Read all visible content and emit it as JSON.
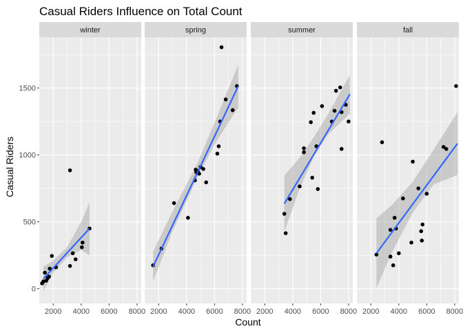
{
  "chart_data": {
    "type": "scatter",
    "title": "Casual Riders Influence on Total Count",
    "xlabel": "Count",
    "ylabel": "Casual Riders",
    "xlim": [
      1000,
      8300
    ],
    "ylim": [
      -110,
      1880
    ],
    "x_ticks": [
      2000,
      4000,
      6000,
      8000
    ],
    "y_ticks": [
      0,
      500,
      1000,
      1500
    ],
    "grid": true,
    "colors": {
      "panel_bg": "#ebebeb",
      "strip_bg": "#d9d9d9",
      "grid": "#ffffff",
      "points": "#000000",
      "fit_line": "#3366ff",
      "ribbon": "#999999"
    },
    "facets": [
      {
        "label": "winter",
        "fit": {
          "x_start": 1300,
          "x_end": 4600,
          "y_start": 75,
          "y_end": 450
        },
        "band": [
          [
            1300,
            -15,
            165
          ],
          [
            2000,
            120,
            210
          ],
          [
            3000,
            235,
            310
          ],
          [
            4000,
            290,
            500
          ],
          [
            4600,
            250,
            645
          ]
        ],
        "points": [
          [
            1200,
            40
          ],
          [
            1300,
            55
          ],
          [
            1400,
            120
          ],
          [
            1500,
            60
          ],
          [
            1600,
            80
          ],
          [
            1700,
            90
          ],
          [
            1750,
            150
          ],
          [
            1900,
            245
          ],
          [
            2200,
            160
          ],
          [
            3200,
            885
          ],
          [
            3200,
            170
          ],
          [
            3400,
            265
          ],
          [
            3600,
            220
          ],
          [
            4050,
            310
          ],
          [
            4100,
            345
          ],
          [
            4600,
            450
          ]
        ]
      },
      {
        "label": "spring",
        "fit": {
          "x_start": 1600,
          "x_end": 7700,
          "y_start": 165,
          "y_end": 1515
        },
        "band": [
          [
            1600,
            55,
            275
          ],
          [
            3000,
            430,
            580
          ],
          [
            4700,
            815,
            920
          ],
          [
            6000,
            1080,
            1240
          ],
          [
            7700,
            1355,
            1675
          ]
        ],
        "points": [
          [
            1600,
            175
          ],
          [
            2200,
            300
          ],
          [
            3100,
            640
          ],
          [
            4100,
            530
          ],
          [
            4600,
            810
          ],
          [
            4650,
            890
          ],
          [
            4700,
            870
          ],
          [
            4800,
            880
          ],
          [
            4900,
            860
          ],
          [
            5000,
            910
          ],
          [
            5200,
            895
          ],
          [
            5400,
            795
          ],
          [
            6200,
            1010
          ],
          [
            6300,
            1065
          ],
          [
            6400,
            1250
          ],
          [
            6500,
            1805
          ],
          [
            6800,
            1415
          ],
          [
            7300,
            1335
          ],
          [
            7600,
            1515
          ]
        ]
      },
      {
        "label": "summer",
        "fit": {
          "x_start": 3400,
          "x_end": 8100,
          "y_start": 635,
          "y_end": 1455
        },
        "band": [
          [
            3400,
            425,
            845
          ],
          [
            4500,
            750,
            980
          ],
          [
            5500,
            985,
            1130
          ],
          [
            6500,
            1150,
            1300
          ],
          [
            8100,
            1310,
            1600
          ]
        ],
        "points": [
          [
            3400,
            560
          ],
          [
            3500,
            415
          ],
          [
            3800,
            670
          ],
          [
            4500,
            765
          ],
          [
            4800,
            1020
          ],
          [
            4800,
            1050
          ],
          [
            5300,
            1245
          ],
          [
            5400,
            830
          ],
          [
            5500,
            1315
          ],
          [
            5700,
            1065
          ],
          [
            5800,
            745
          ],
          [
            6100,
            1365
          ],
          [
            6800,
            1250
          ],
          [
            7000,
            1330
          ],
          [
            7100,
            1480
          ],
          [
            7400,
            1505
          ],
          [
            7500,
            1320
          ],
          [
            7500,
            1045
          ],
          [
            7800,
            1375
          ],
          [
            8000,
            1250
          ]
        ]
      },
      {
        "label": "fall",
        "fit": {
          "x_start": 2400,
          "x_end": 8200,
          "y_start": 265,
          "y_end": 1085
        },
        "band": [
          [
            2400,
            5,
            525
          ],
          [
            3500,
            270,
            625
          ],
          [
            5000,
            570,
            800
          ],
          [
            6500,
            780,
            1040
          ],
          [
            8200,
            850,
            1320
          ]
        ],
        "points": [
          [
            2400,
            255
          ],
          [
            2800,
            1095
          ],
          [
            3400,
            240
          ],
          [
            3400,
            440
          ],
          [
            3600,
            175
          ],
          [
            3700,
            530
          ],
          [
            3800,
            450
          ],
          [
            4000,
            265
          ],
          [
            4300,
            675
          ],
          [
            4900,
            345
          ],
          [
            5000,
            950
          ],
          [
            5400,
            750
          ],
          [
            5600,
            430
          ],
          [
            5650,
            360
          ],
          [
            5700,
            480
          ],
          [
            6000,
            710
          ],
          [
            7200,
            1060
          ],
          [
            7400,
            1045
          ],
          [
            8100,
            1515
          ]
        ]
      }
    ]
  }
}
